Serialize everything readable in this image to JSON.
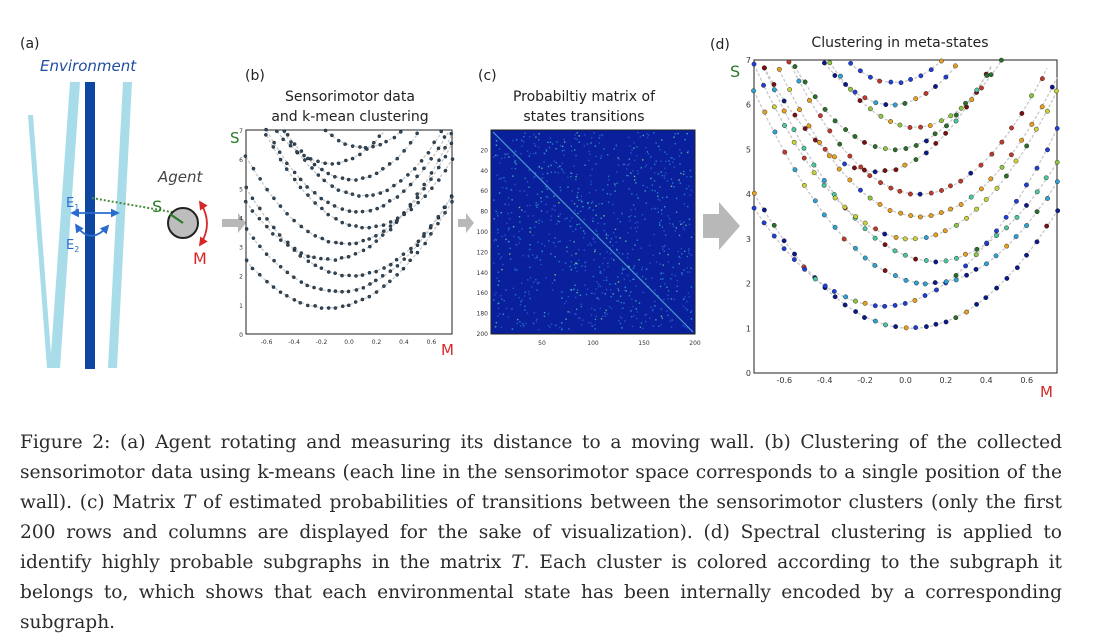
{
  "panel_a": {
    "label": "(a)",
    "environment": "Environment",
    "agent": "Agent",
    "s_label": "S",
    "m_label": "M",
    "e1_main": "E",
    "e1_sub": "1",
    "e2_main": "E",
    "e2_sub": "2"
  },
  "panel_b": {
    "label": "(b)",
    "title_line1": "Sensorimotor data",
    "title_line2": "and k-mean clustering",
    "y_axis_label": "S",
    "x_axis_label": "M",
    "x_ticks": [
      "-0.6",
      "-0.4",
      "-0.2",
      "0.0",
      "0.2",
      "0.4",
      "0.6"
    ],
    "y_ticks": [
      "0",
      "1",
      "2",
      "3",
      "4",
      "5",
      "6",
      "7"
    ]
  },
  "panel_c": {
    "label": "(c)",
    "title_line1": "Probabiltiy matrix of",
    "title_line2": "states transitions",
    "y_ticks": [
      "20",
      "40",
      "60",
      "80",
      "100",
      "120",
      "140",
      "160",
      "180",
      "200"
    ],
    "x_ticks": [
      "50",
      "100",
      "150",
      "200"
    ]
  },
  "panel_d": {
    "label": "(d)",
    "title": "Clustering in meta-states",
    "y_axis_label": "S",
    "x_axis_label": "M",
    "x_ticks": [
      "-0.6",
      "-0.4",
      "-0.2",
      "0.0",
      "0.2",
      "0.4",
      "0.6"
    ],
    "y_ticks": [
      "0",
      "1",
      "2",
      "3",
      "4",
      "5",
      "6",
      "7"
    ]
  },
  "colors": {
    "wall_light": "#a8dce9",
    "wall_dark": "#0d47a1",
    "env_text": "#1f4fa0",
    "red": "#d62728",
    "grey_arrow": "#b8b8b8",
    "matrix_bg": "#0a1f9c",
    "cluster_points": "#2f4a60"
  },
  "caption": {
    "p1": "Figure 2: (a) Agent rotating and measuring its distance to a moving wall. (b) Clustering of the collected sensorimotor data using k-means (each line in the sensorimotor space corresponds to a single position of the wall). (c) Matrix ",
    "T1": "T",
    "p2": " of estimated probabilities of transitions between the sensorimotor clusters (only the first 200 rows and columns are displayed for the sake of visualization). (d) Spectral clustering is applied to identify highly probable subgraphs in the matrix ",
    "T2": "T",
    "p3": ". Each cluster is colored according to the subgraph it belongs to, which shows that each environmental state has been internally encoded by a corresponding subgraph."
  }
}
